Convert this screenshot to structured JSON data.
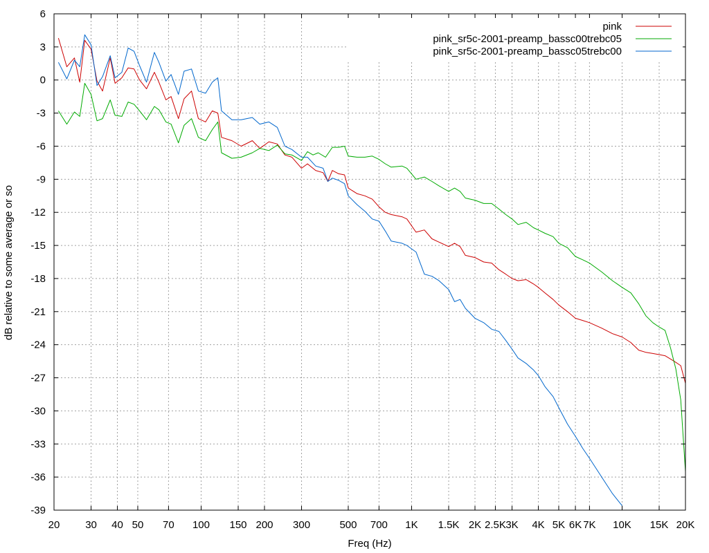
{
  "chart_data": {
    "type": "line",
    "title": "",
    "xlabel": "Freq (Hz)",
    "ylabel": "dB relative to some average or so",
    "xscale": "log",
    "xlim": [
      20,
      20000
    ],
    "ylim": [
      -39,
      6
    ],
    "grid": true,
    "legend_position": "top-right",
    "x_ticks": [
      {
        "v": 20,
        "label": "20"
      },
      {
        "v": 30,
        "label": "30"
      },
      {
        "v": 40,
        "label": "40"
      },
      {
        "v": 50,
        "label": "50"
      },
      {
        "v": 70,
        "label": "70"
      },
      {
        "v": 100,
        "label": "100"
      },
      {
        "v": 150,
        "label": "150"
      },
      {
        "v": 200,
        "label": "200"
      },
      {
        "v": 300,
        "label": "300"
      },
      {
        "v": 500,
        "label": "500"
      },
      {
        "v": 700,
        "label": "700"
      },
      {
        "v": 1000,
        "label": "1K"
      },
      {
        "v": 1500,
        "label": "1.5K"
      },
      {
        "v": 2000,
        "label": "2K"
      },
      {
        "v": 2500,
        "label": "2.5K"
      },
      {
        "v": 3000,
        "label": "3K"
      },
      {
        "v": 4000,
        "label": "4K"
      },
      {
        "v": 5000,
        "label": "5K"
      },
      {
        "v": 6000,
        "label": "6K"
      },
      {
        "v": 7000,
        "label": "7K"
      },
      {
        "v": 10000,
        "label": "10K"
      },
      {
        "v": 15000,
        "label": "15K"
      },
      {
        "v": 20000,
        "label": "20K"
      }
    ],
    "y_ticks": [
      6,
      3,
      0,
      -3,
      -6,
      -9,
      -12,
      -15,
      -18,
      -21,
      -24,
      -27,
      -30,
      -33,
      -36,
      -39
    ],
    "series": [
      {
        "name": "pink",
        "color": "#cc0000",
        "x": [
          21,
          23,
          25,
          26.5,
          28,
          30,
          32,
          34,
          37,
          39,
          42,
          45,
          48,
          51,
          55,
          60,
          63,
          68,
          72,
          78,
          83,
          90,
          97,
          105,
          113,
          120,
          125,
          140,
          155,
          175,
          190,
          210,
          230,
          250,
          270,
          300,
          320,
          350,
          380,
          400,
          420,
          450,
          480,
          500,
          550,
          600,
          650,
          700,
          750,
          800,
          900,
          950,
          1050,
          1150,
          1250,
          1350,
          1500,
          1600,
          1700,
          1800,
          2000,
          2200,
          2400,
          2600,
          2800,
          3000,
          3200,
          3500,
          3800,
          4000,
          4300,
          4700,
          5000,
          5500,
          6000,
          6500,
          7000,
          8000,
          9000,
          10000,
          11000,
          12000,
          13000,
          14000,
          15000,
          16000,
          17000,
          18000,
          19000,
          20000
        ],
        "y": [
          3.8,
          1.2,
          2.0,
          -0.2,
          3.6,
          2.8,
          -0.1,
          -1.0,
          2.0,
          -0.3,
          0.2,
          1.1,
          1.0,
          0.0,
          -0.8,
          0.7,
          -0.2,
          -1.8,
          -1.5,
          -3.5,
          -1.7,
          -1.0,
          -3.5,
          -3.8,
          -2.8,
          -3.0,
          -5.2,
          -5.5,
          -6.0,
          -5.5,
          -6.2,
          -5.6,
          -5.8,
          -6.8,
          -7.0,
          -8.0,
          -7.6,
          -8.2,
          -8.4,
          -9.2,
          -8.2,
          -8.5,
          -8.6,
          -9.8,
          -10.3,
          -10.5,
          -10.8,
          -11.5,
          -12.0,
          -12.2,
          -12.4,
          -12.6,
          -13.8,
          -13.6,
          -14.4,
          -14.7,
          -15.1,
          -14.8,
          -15.1,
          -15.9,
          -16.1,
          -16.5,
          -16.6,
          -17.2,
          -17.6,
          -18.0,
          -18.2,
          -18.1,
          -18.5,
          -18.8,
          -19.3,
          -19.9,
          -20.4,
          -21.0,
          -21.6,
          -21.8,
          -22.0,
          -22.5,
          -23.0,
          -23.3,
          -23.8,
          -24.5,
          -24.7,
          -24.8,
          -24.9,
          -25.0,
          -25.3,
          -25.6,
          -25.9,
          -27.5
        ]
      },
      {
        "name": "pink_sr5c-2001-preamp_bassc00trebc05",
        "color": "#00aa00",
        "x": [
          21,
          23,
          25,
          26.5,
          28,
          30,
          32,
          34,
          37,
          39,
          42,
          45,
          48,
          51,
          55,
          60,
          63,
          68,
          72,
          78,
          83,
          90,
          97,
          105,
          113,
          120,
          125,
          140,
          155,
          175,
          190,
          210,
          230,
          250,
          270,
          300,
          320,
          340,
          360,
          390,
          420,
          450,
          480,
          500,
          550,
          600,
          650,
          700,
          750,
          800,
          900,
          950,
          1050,
          1150,
          1250,
          1350,
          1500,
          1600,
          1700,
          1800,
          2000,
          2200,
          2400,
          2600,
          2800,
          3000,
          3200,
          3500,
          3800,
          4000,
          4300,
          4700,
          5000,
          5500,
          6000,
          6500,
          7000,
          8000,
          9000,
          10000,
          11000,
          12000,
          13000,
          14000,
          15000,
          16000,
          17000,
          18000,
          19000,
          20000
        ],
        "y": [
          -2.8,
          -4.0,
          -2.9,
          -3.3,
          -0.3,
          -1.3,
          -3.7,
          -3.5,
          -1.8,
          -3.2,
          -3.3,
          -2.0,
          -2.2,
          -2.8,
          -3.6,
          -2.4,
          -2.7,
          -3.8,
          -4.0,
          -5.7,
          -4.1,
          -3.5,
          -5.2,
          -5.5,
          -4.5,
          -3.8,
          -6.6,
          -7.1,
          -7.0,
          -6.6,
          -6.2,
          -6.4,
          -5.9,
          -6.7,
          -6.8,
          -7.3,
          -6.5,
          -6.8,
          -6.6,
          -7.0,
          -6.1,
          -6.1,
          -6.0,
          -6.9,
          -7.0,
          -7.0,
          -6.9,
          -7.2,
          -7.6,
          -7.9,
          -7.8,
          -8.0,
          -9.0,
          -8.8,
          -9.2,
          -9.6,
          -10.1,
          -9.8,
          -10.1,
          -10.7,
          -10.9,
          -11.2,
          -11.2,
          -11.7,
          -12.2,
          -12.6,
          -13.1,
          -12.9,
          -13.4,
          -13.6,
          -13.9,
          -14.2,
          -14.8,
          -15.2,
          -16.0,
          -16.3,
          -16.6,
          -17.4,
          -18.2,
          -18.8,
          -19.3,
          -20.3,
          -21.4,
          -22.0,
          -22.4,
          -22.7,
          -24.3,
          -26.2,
          -29.0,
          -35.5
        ]
      },
      {
        "name": "pink_sr5c-2001-preamp_bassc05trebc00",
        "color": "#0066cc",
        "x": [
          21,
          23,
          25,
          26.5,
          28,
          30,
          32,
          34,
          37,
          39,
          42,
          45,
          48,
          51,
          55,
          60,
          63,
          68,
          72,
          78,
          83,
          90,
          97,
          105,
          113,
          120,
          125,
          140,
          155,
          175,
          190,
          210,
          230,
          250,
          270,
          300,
          320,
          350,
          380,
          400,
          420,
          450,
          480,
          500,
          550,
          600,
          650,
          700,
          750,
          800,
          900,
          950,
          1050,
          1150,
          1250,
          1350,
          1500,
          1600,
          1700,
          1800,
          2000,
          2200,
          2400,
          2600,
          2800,
          3000,
          3200,
          3500,
          3800,
          4000,
          4300,
          4700,
          5000,
          5500,
          6000,
          6500,
          7000,
          8000,
          9000,
          10000
        ],
        "y": [
          1.6,
          0.1,
          1.8,
          1.2,
          4.1,
          3.2,
          -0.5,
          0.3,
          2.2,
          0.2,
          0.7,
          2.9,
          2.6,
          1.3,
          -0.2,
          2.5,
          1.6,
          -0.1,
          0.5,
          -1.3,
          0.8,
          1.0,
          -1.0,
          -1.2,
          -0.2,
          0.2,
          -2.8,
          -3.6,
          -3.6,
          -3.4,
          -4.0,
          -3.8,
          -4.3,
          -6.0,
          -6.3,
          -7.0,
          -7.0,
          -7.8,
          -8.0,
          -9.2,
          -8.9,
          -9.1,
          -9.4,
          -10.5,
          -11.3,
          -11.9,
          -12.6,
          -12.8,
          -13.7,
          -14.6,
          -14.8,
          -15.0,
          -15.6,
          -17.6,
          -17.8,
          -18.2,
          -19.0,
          -20.1,
          -19.9,
          -20.7,
          -21.6,
          -22.0,
          -22.6,
          -22.8,
          -23.6,
          -24.4,
          -25.2,
          -25.7,
          -26.3,
          -26.8,
          -27.8,
          -28.7,
          -29.7,
          -31.2,
          -32.3,
          -33.4,
          -34.3,
          -36.0,
          -37.5,
          -38.6
        ]
      }
    ]
  }
}
